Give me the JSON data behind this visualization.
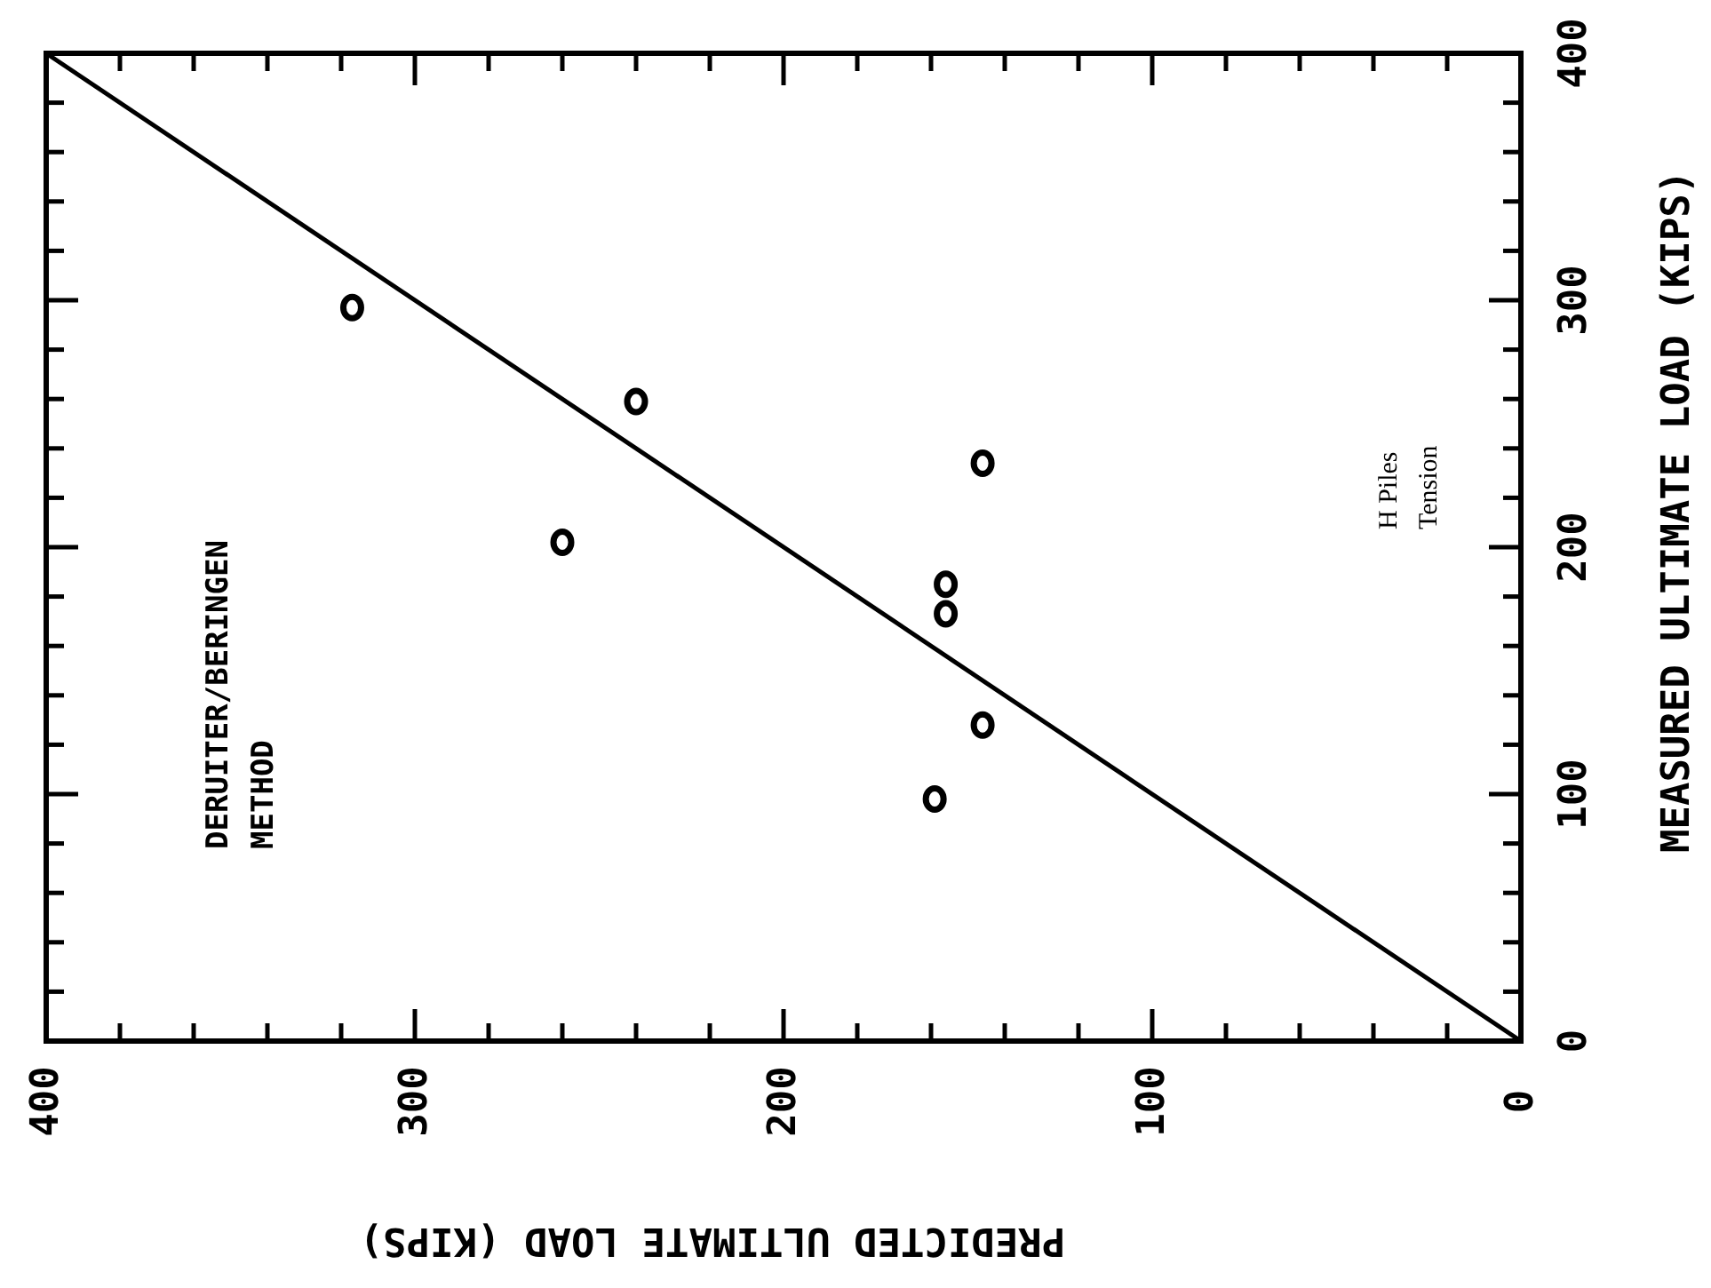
{
  "chart_data": {
    "type": "scatter",
    "xlabel": "PREDICTED ULTIMATE LOAD (KIPS)",
    "ylabel": "MEASURED ULTIMATE LOAD (KIPS)",
    "xlim": [
      400,
      0
    ],
    "ylim": [
      0,
      400
    ],
    "xticks": [
      400,
      {
        "value": 380,
        "label": null
      },
      {
        "value": 360,
        "label": null
      },
      {
        "value": 340,
        "label": null
      },
      {
        "value": 320,
        "label": null
      },
      300,
      {
        "value": 280,
        "label": null
      },
      {
        "value": 260,
        "label": null
      },
      {
        "value": 240,
        "label": null
      },
      {
        "value": 220,
        "label": null
      },
      200,
      {
        "value": 180,
        "label": null
      },
      {
        "value": 160,
        "label": null
      },
      {
        "value": 140,
        "label": null
      },
      {
        "value": 120,
        "label": null
      },
      100,
      {
        "value": 80,
        "label": null
      },
      {
        "value": 60,
        "label": null
      },
      {
        "value": 40,
        "label": null
      },
      {
        "value": 20,
        "label": null
      },
      0
    ],
    "yticks": [
      0,
      {
        "value": 20,
        "label": null
      },
      {
        "value": 40,
        "label": null
      },
      {
        "value": 60,
        "label": null
      },
      {
        "value": 80,
        "label": null
      },
      100,
      {
        "value": 120,
        "label": null
      },
      {
        "value": 140,
        "label": null
      },
      {
        "value": 160,
        "label": null
      },
      {
        "value": 180,
        "label": null
      },
      200,
      {
        "value": 220,
        "label": null
      },
      {
        "value": 240,
        "label": null
      },
      {
        "value": 260,
        "label": null
      },
      {
        "value": 280,
        "label": null
      },
      300,
      {
        "value": 320,
        "label": null
      },
      {
        "value": 340,
        "label": null
      },
      {
        "value": 360,
        "label": null
      },
      {
        "value": 380,
        "label": null
      },
      400
    ],
    "marker": "circle",
    "grid": false,
    "series": [
      {
        "color": "#000000",
        "x": [
          317,
          240,
          260,
          146,
          156,
          156,
          146,
          159
        ],
        "values": [
          297,
          259,
          202,
          234,
          185,
          173,
          128,
          98
        ]
      },
      {
        "type": "line",
        "marker": "none",
        "color": "#000000",
        "x": [
          0,
          400
        ],
        "values": [
          0,
          400
        ]
      }
    ],
    "annotations": [
      "DERUITER/BERINGEN\nMETHOD",
      "H Piles\nTension"
    ]
  }
}
